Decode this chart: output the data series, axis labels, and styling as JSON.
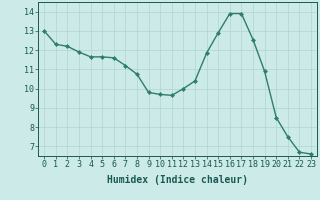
{
  "x": [
    0,
    1,
    2,
    3,
    4,
    5,
    6,
    7,
    8,
    9,
    10,
    11,
    12,
    13,
    14,
    15,
    16,
    17,
    18,
    19,
    20,
    21,
    22,
    23
  ],
  "y": [
    13.0,
    12.3,
    12.2,
    11.9,
    11.65,
    11.65,
    11.6,
    11.2,
    10.75,
    9.8,
    9.7,
    9.65,
    10.0,
    10.4,
    11.85,
    12.9,
    13.9,
    13.9,
    12.55,
    10.9,
    8.5,
    7.5,
    6.7,
    6.6
  ],
  "line_color": "#2e7d6e",
  "marker": "D",
  "marker_size": 2,
  "bg_color": "#cceae7",
  "grid_color": "#b0d5d2",
  "xlabel": "Humidex (Indice chaleur)",
  "ylim": [
    6.5,
    14.5
  ],
  "xlim": [
    -0.5,
    23.5
  ],
  "yticks": [
    7,
    8,
    9,
    10,
    11,
    12,
    13,
    14
  ],
  "xticks": [
    0,
    1,
    2,
    3,
    4,
    5,
    6,
    7,
    8,
    9,
    10,
    11,
    12,
    13,
    14,
    15,
    16,
    17,
    18,
    19,
    20,
    21,
    22,
    23
  ],
  "tick_color": "#1a5952",
  "xlabel_fontsize": 7,
  "tick_fontsize": 6,
  "linewidth": 1.0
}
